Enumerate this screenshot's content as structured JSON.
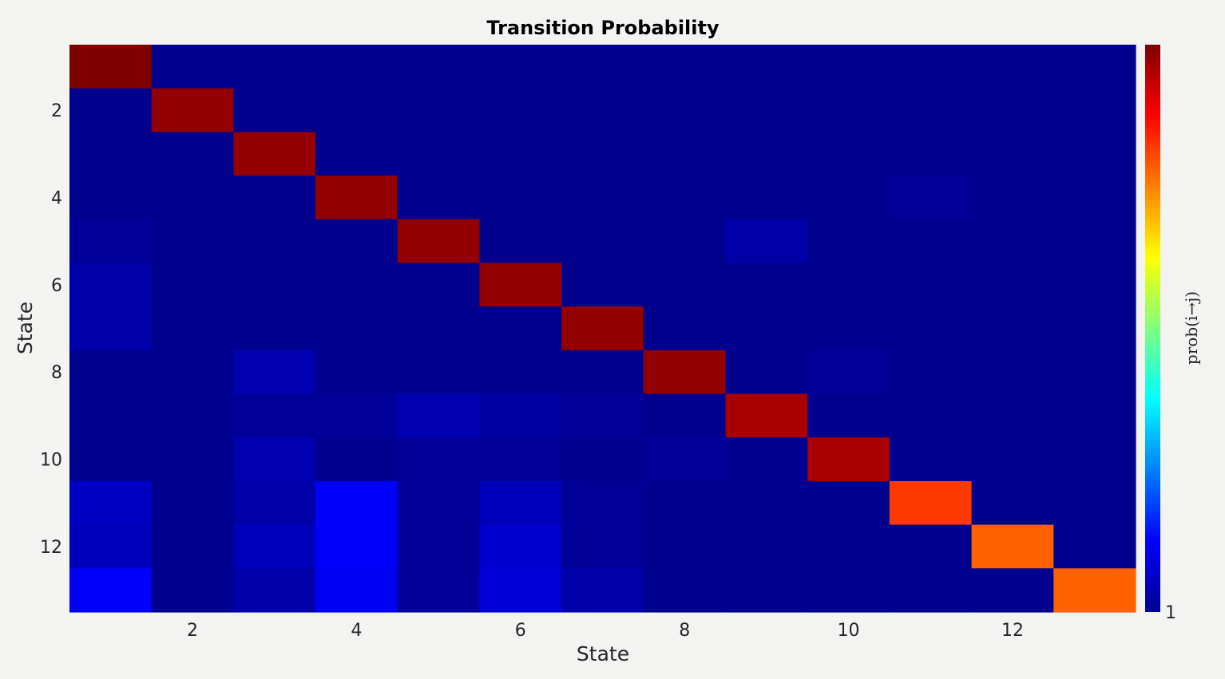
{
  "chart_data": {
    "type": "heatmap",
    "title": "Transition Probability",
    "xlabel": "State",
    "ylabel": "State",
    "x_ticks": [
      2,
      4,
      6,
      8,
      10,
      12
    ],
    "y_ticks": [
      2,
      4,
      6,
      8,
      10,
      12
    ],
    "n_states": 13,
    "colormap": "jet",
    "clim": [
      0,
      1
    ],
    "colorbar": {
      "label": "prob(i→j)",
      "tick_labels": [
        "1"
      ],
      "location": "right"
    },
    "matrix": [
      [
        1.0,
        0.0,
        0.0,
        0.0,
        0.0,
        0.0,
        0.0,
        0.0,
        0.0,
        0.0,
        0.0,
        0.0,
        0.0
      ],
      [
        0.0,
        0.98,
        0.0,
        0.0,
        0.0,
        0.0,
        0.0,
        0.0,
        0.0,
        0.0,
        0.0,
        0.0,
        0.0
      ],
      [
        0.0,
        0.0,
        0.98,
        0.0,
        0.0,
        0.0,
        0.0,
        0.0,
        0.0,
        0.0,
        0.0,
        0.0,
        0.0
      ],
      [
        0.0,
        0.0,
        0.0,
        0.98,
        0.0,
        0.0,
        0.0,
        0.0,
        0.0,
        0.0,
        0.01,
        0.0,
        0.0
      ],
      [
        0.01,
        0.0,
        0.0,
        0.0,
        0.98,
        0.0,
        0.0,
        0.0,
        0.03,
        0.0,
        0.0,
        0.0,
        0.0
      ],
      [
        0.03,
        0.0,
        0.0,
        0.0,
        0.0,
        0.98,
        0.0,
        0.0,
        0.0,
        0.0,
        0.0,
        0.0,
        0.0
      ],
      [
        0.03,
        0.0,
        0.0,
        0.0,
        0.0,
        0.0,
        0.98,
        0.0,
        0.0,
        0.0,
        0.0,
        0.0,
        0.0
      ],
      [
        0.0,
        0.0,
        0.04,
        0.0,
        0.0,
        0.0,
        0.0,
        0.98,
        0.0,
        0.01,
        0.0,
        0.0,
        0.0
      ],
      [
        0.0,
        0.0,
        0.01,
        0.01,
        0.04,
        0.02,
        0.01,
        0.0,
        0.96,
        0.0,
        0.0,
        0.0,
        0.0
      ],
      [
        0.0,
        0.0,
        0.04,
        0.0,
        0.01,
        0.01,
        0.0,
        0.01,
        0.0,
        0.96,
        0.0,
        0.0,
        0.0
      ],
      [
        0.06,
        0.0,
        0.03,
        0.12,
        0.01,
        0.05,
        0.01,
        0.0,
        0.0,
        0.0,
        0.82,
        0.0,
        0.0
      ],
      [
        0.05,
        0.0,
        0.05,
        0.12,
        0.01,
        0.07,
        0.01,
        0.0,
        0.0,
        0.0,
        0.0,
        0.78,
        0.0
      ],
      [
        0.12,
        0.0,
        0.03,
        0.11,
        0.01,
        0.08,
        0.03,
        0.0,
        0.0,
        0.0,
        0.0,
        0.0,
        0.78
      ]
    ]
  }
}
